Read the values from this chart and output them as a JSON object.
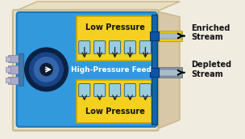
{
  "bg_color": "#f0ece0",
  "outer_box_color": "#e8dfc8",
  "outer_box_edge": "#c8b888",
  "inner_blue": "#3399dd",
  "inner_blue_edge": "#1a77bb",
  "yellow_color": "#f5d020",
  "yellow_edge": "#c8a800",
  "valve_color": "#99ccdd",
  "valve_edge": "#336688",
  "membrane_color": "#1a5599",
  "pipe_yellow": "#f0cc00",
  "pipe_blue_outer": "#aabbcc",
  "pipe_blue_inner": "#7799bb",
  "arrow_color": "#111111",
  "text_dark": "#111111",
  "text_white": "#ffffff",
  "low_pressure_top": "Low Pressure",
  "low_pressure_bot": "Low Pressure",
  "high_pressure_label": "High-Pressure Feed",
  "enriched_label": "Enriched\nStream",
  "depleted_label": "Depleted\nStream",
  "num_valves": 5,
  "figw": 3.04,
  "figh": 1.72
}
